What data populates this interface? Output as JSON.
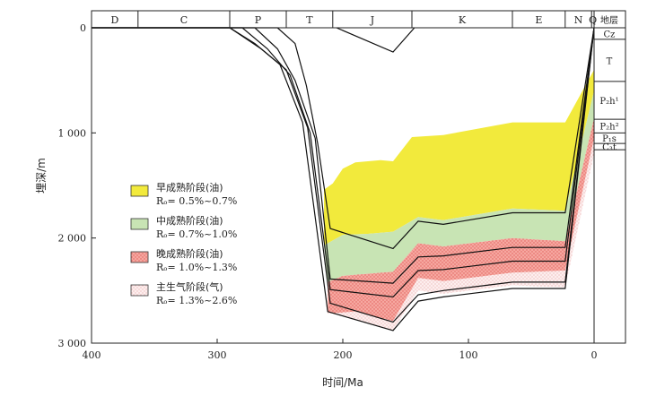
{
  "chart_data": {
    "type": "area",
    "title": "",
    "xlabel": "时间/Ma",
    "ylabel": "埋深/m",
    "xlim": [
      400,
      0
    ],
    "ylim": [
      0,
      3000
    ],
    "x_ticks": [
      400,
      300,
      200,
      100,
      0
    ],
    "y_ticks": [
      {
        "value": 0,
        "label": "0"
      },
      {
        "value": 1000,
        "label": "1 000"
      },
      {
        "value": 2000,
        "label": "2 000"
      },
      {
        "value": 3000,
        "label": "3 000"
      }
    ],
    "periods": [
      {
        "label": "D",
        "start": 400,
        "end": 363
      },
      {
        "label": "C",
        "start": 363,
        "end": 290
      },
      {
        "label": "P",
        "start": 290,
        "end": 245
      },
      {
        "label": "T",
        "start": 245,
        "end": 208
      },
      {
        "label": "J",
        "start": 208,
        "end": 145
      },
      {
        "label": "K",
        "start": 145,
        "end": 65
      },
      {
        "label": "E",
        "start": 65,
        "end": 23
      },
      {
        "label": "N",
        "start": 23,
        "end": 2
      },
      {
        "label": "Q",
        "start": 2,
        "end": 0
      }
    ],
    "strata_header": "地层",
    "strata": [
      {
        "label": "Cz",
        "top": 0,
        "bottom": 110
      },
      {
        "label": "T",
        "top": 110,
        "bottom": 510
      },
      {
        "label": "P₂h¹",
        "top": 510,
        "bottom": 870
      },
      {
        "label": "P₂h²",
        "top": 870,
        "bottom": 1000
      },
      {
        "label": "P₁s",
        "top": 1000,
        "bottom": 1100
      },
      {
        "label": "C₃t",
        "top": 1100,
        "bottom": 1160
      }
    ],
    "burial_curves": [
      [
        [
          400,
          0
        ],
        [
          290,
          0
        ],
        [
          270,
          150
        ],
        [
          250,
          350
        ],
        [
          232,
          900
        ],
        [
          212,
          2700
        ],
        [
          160,
          2880
        ],
        [
          140,
          2600
        ],
        [
          120,
          2560
        ],
        [
          65,
          2480
        ],
        [
          23,
          2480
        ],
        [
          0,
          0
        ]
      ],
      [
        [
          400,
          0
        ],
        [
          290,
          0
        ],
        [
          265,
          200
        ],
        [
          245,
          400
        ],
        [
          228,
          950
        ],
        [
          210,
          2620
        ],
        [
          160,
          2800
        ],
        [
          140,
          2540
        ],
        [
          120,
          2500
        ],
        [
          65,
          2420
        ],
        [
          23,
          2420
        ],
        [
          0,
          0
        ]
      ],
      [
        [
          400,
          0
        ],
        [
          280,
          0
        ],
        [
          260,
          200
        ],
        [
          242,
          450
        ],
        [
          226,
          1000
        ],
        [
          210,
          2490
        ],
        [
          160,
          2560
        ],
        [
          140,
          2310
        ],
        [
          120,
          2300
        ],
        [
          65,
          2220
        ],
        [
          23,
          2220
        ],
        [
          0,
          0
        ]
      ],
      [
        [
          400,
          0
        ],
        [
          270,
          0
        ],
        [
          252,
          200
        ],
        [
          238,
          500
        ],
        [
          222,
          1050
        ],
        [
          210,
          2390
        ],
        [
          160,
          2430
        ],
        [
          140,
          2180
        ],
        [
          120,
          2170
        ],
        [
          65,
          2090
        ],
        [
          23,
          2090
        ],
        [
          0,
          0
        ]
      ],
      [
        [
          400,
          0
        ],
        [
          252,
          0
        ],
        [
          238,
          150
        ],
        [
          229,
          550
        ],
        [
          220,
          1100
        ],
        [
          210,
          1910
        ],
        [
          160,
          2100
        ],
        [
          140,
          1840
        ],
        [
          120,
          1870
        ],
        [
          65,
          1760
        ],
        [
          23,
          1760
        ],
        [
          0,
          0
        ]
      ],
      [
        [
          205,
          0
        ],
        [
          160,
          230
        ],
        [
          143,
          0
        ]
      ]
    ],
    "series": [
      {
        "name": "早成熟阶段(油)",
        "range": "Rₒ= 0.5%~0.7%",
        "color": "#f2ea3c",
        "top": [
          [
            215,
            1540
          ],
          [
            208,
            1480
          ],
          [
            200,
            1340
          ],
          [
            190,
            1280
          ],
          [
            170,
            1260
          ],
          [
            160,
            1270
          ],
          [
            145,
            1040
          ],
          [
            120,
            1020
          ],
          [
            65,
            900
          ],
          [
            23,
            900
          ],
          [
            0,
            400
          ]
        ],
        "bottom": [
          [
            0,
            600
          ],
          [
            23,
            1740
          ],
          [
            65,
            1720
          ],
          [
            120,
            1830
          ],
          [
            140,
            1800
          ],
          [
            160,
            1940
          ],
          [
            180,
            1960
          ],
          [
            200,
            1970
          ],
          [
            215,
            2070
          ]
        ]
      },
      {
        "name": "中成熟阶段(油)",
        "range": "Rₒ= 0.7%~1.0%",
        "color": "#c8e4b4",
        "top": [
          [
            215,
            2070
          ],
          [
            200,
            1970
          ],
          [
            180,
            1960
          ],
          [
            160,
            1940
          ],
          [
            140,
            1800
          ],
          [
            120,
            1830
          ],
          [
            65,
            1720
          ],
          [
            23,
            1740
          ],
          [
            0,
            600
          ]
        ],
        "bottom": [
          [
            0,
            860
          ],
          [
            23,
            2030
          ],
          [
            65,
            2000
          ],
          [
            120,
            2080
          ],
          [
            140,
            2050
          ],
          [
            160,
            2320
          ],
          [
            200,
            2360
          ],
          [
            212,
            2420
          ]
        ]
      },
      {
        "name": "晚成熟阶段(油)",
        "range": "Rₒ= 1.0%~1.3%",
        "color": "#f4a09a",
        "top": [
          [
            212,
            2420
          ],
          [
            200,
            2360
          ],
          [
            160,
            2320
          ],
          [
            140,
            2050
          ],
          [
            120,
            2080
          ],
          [
            65,
            2000
          ],
          [
            23,
            2030
          ],
          [
            0,
            860
          ]
        ],
        "bottom": [
          [
            0,
            1050
          ],
          [
            23,
            2310
          ],
          [
            65,
            2330
          ],
          [
            120,
            2410
          ],
          [
            140,
            2380
          ],
          [
            160,
            2790
          ],
          [
            190,
            2700
          ],
          [
            212,
            2720
          ]
        ]
      },
      {
        "name": "主生气阶段(气)",
        "range": "Rₒ= 1.3%~2.6%",
        "color": "#fce4e2",
        "top": [
          [
            212,
            2720
          ],
          [
            190,
            2700
          ],
          [
            160,
            2790
          ],
          [
            140,
            2380
          ],
          [
            120,
            2410
          ],
          [
            65,
            2330
          ],
          [
            23,
            2310
          ],
          [
            0,
            1050
          ]
        ],
        "bottom": [
          [
            0,
            1200
          ],
          [
            23,
            2470
          ],
          [
            65,
            2450
          ],
          [
            120,
            2530
          ],
          [
            140,
            2500
          ],
          [
            160,
            2880
          ],
          [
            212,
            2700
          ]
        ]
      }
    ],
    "legend_position": "left-middle",
    "grid": false
  }
}
